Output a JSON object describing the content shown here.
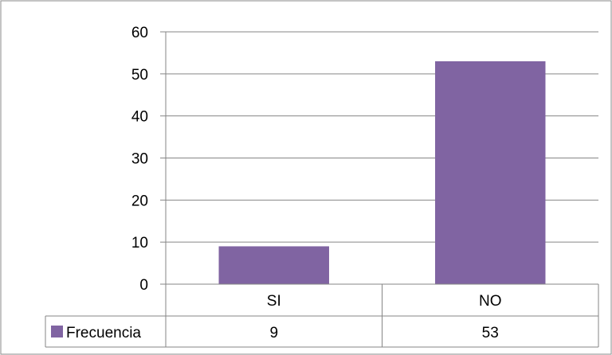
{
  "chart_data": {
    "type": "bar",
    "categories": [
      "SI",
      "NO"
    ],
    "series": [
      {
        "name": "Frecuencia",
        "values": [
          9,
          53
        ],
        "color": "#8064A2"
      }
    ],
    "ylim": [
      0,
      60
    ],
    "yticks": [
      0,
      10,
      20,
      30,
      40,
      50,
      60
    ],
    "grid": true,
    "data_table": true
  }
}
